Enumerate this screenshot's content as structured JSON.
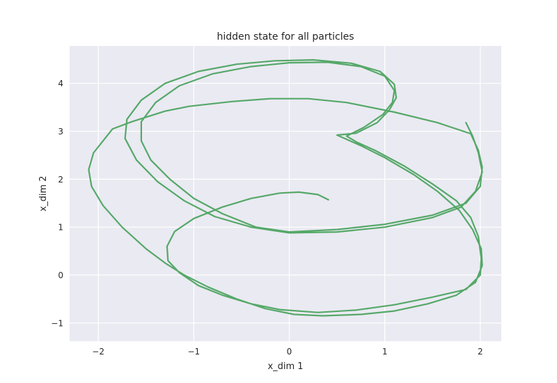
{
  "chart_data": {
    "type": "line",
    "title": "hidden state for all particles",
    "xlabel": "x_dim 1",
    "ylabel": "x_dim 2",
    "xlim": [
      -2.3,
      2.22
    ],
    "ylim": [
      -1.38,
      4.78
    ],
    "xticks": [
      {
        "value": -2,
        "label": "−2"
      },
      {
        "value": -1,
        "label": "−1"
      },
      {
        "value": 0,
        "label": "0"
      },
      {
        "value": 1,
        "label": "1"
      },
      {
        "value": 2,
        "label": "2"
      }
    ],
    "yticks": [
      {
        "value": -1,
        "label": "−1"
      },
      {
        "value": 0,
        "label": "0"
      },
      {
        "value": 1,
        "label": "1"
      },
      {
        "value": 2,
        "label": "2"
      },
      {
        "value": 3,
        "label": "3"
      },
      {
        "value": 4,
        "label": "4"
      }
    ],
    "grid": true,
    "background": "#eaeaf2",
    "grid_color": "#ffffff",
    "series": [
      {
        "color": "#55a868",
        "points": [
          [
            0.41,
            1.57
          ],
          [
            0.3,
            1.68
          ],
          [
            0.1,
            1.73
          ],
          [
            -0.1,
            1.71
          ],
          [
            -0.4,
            1.6
          ],
          [
            -0.7,
            1.42
          ],
          [
            -1.0,
            1.18
          ],
          [
            -1.2,
            0.91
          ],
          [
            -1.28,
            0.6
          ],
          [
            -1.27,
            0.3
          ],
          [
            -1.15,
            0.05
          ],
          [
            -0.95,
            -0.22
          ],
          [
            -0.7,
            -0.42
          ],
          [
            -0.4,
            -0.6
          ],
          [
            -0.1,
            -0.72
          ],
          [
            0.3,
            -0.78
          ],
          [
            0.7,
            -0.73
          ],
          [
            1.1,
            -0.62
          ],
          [
            1.5,
            -0.46
          ],
          [
            1.85,
            -0.3
          ],
          [
            2.0,
            0.0
          ],
          [
            2.01,
            0.35
          ],
          [
            1.98,
            0.8
          ],
          [
            1.9,
            1.2
          ],
          [
            1.75,
            1.55
          ],
          [
            1.5,
            1.9
          ],
          [
            1.2,
            2.28
          ],
          [
            0.9,
            2.6
          ],
          [
            0.7,
            2.78
          ],
          [
            0.6,
            2.9
          ],
          [
            0.78,
            3.08
          ],
          [
            0.98,
            3.35
          ],
          [
            1.08,
            3.6
          ],
          [
            1.1,
            3.85
          ],
          [
            1.0,
            4.15
          ],
          [
            0.75,
            4.35
          ],
          [
            0.4,
            4.44
          ],
          [
            0.0,
            4.43
          ],
          [
            -0.4,
            4.35
          ],
          [
            -0.8,
            4.2
          ],
          [
            -1.15,
            3.95
          ],
          [
            -1.4,
            3.6
          ],
          [
            -1.55,
            3.2
          ],
          [
            -1.55,
            2.8
          ],
          [
            -1.45,
            2.4
          ],
          [
            -1.25,
            2.0
          ],
          [
            -1.0,
            1.6
          ],
          [
            -0.7,
            1.28
          ],
          [
            -0.35,
            1.0
          ],
          [
            0.0,
            0.9
          ],
          [
            0.5,
            0.95
          ],
          [
            1.0,
            1.06
          ],
          [
            1.5,
            1.25
          ],
          [
            1.85,
            1.5
          ],
          [
            2.0,
            1.85
          ],
          [
            2.02,
            2.25
          ],
          [
            1.98,
            2.6
          ],
          [
            1.9,
            2.95
          ],
          [
            1.55,
            3.18
          ],
          [
            1.1,
            3.4
          ],
          [
            0.6,
            3.6
          ],
          [
            0.2,
            3.68
          ],
          [
            -0.2,
            3.68
          ],
          [
            -0.6,
            3.62
          ],
          [
            -1.05,
            3.52
          ],
          [
            -1.3,
            3.42
          ],
          [
            -1.65,
            3.2
          ],
          [
            -1.85,
            3.05
          ],
          [
            -1.95,
            2.8
          ],
          [
            -2.05,
            2.55
          ],
          [
            -2.1,
            2.2
          ],
          [
            -2.07,
            1.85
          ],
          [
            -1.95,
            1.45
          ],
          [
            -1.75,
            1.0
          ],
          [
            -1.5,
            0.55
          ],
          [
            -1.3,
            0.25
          ],
          [
            -1.1,
            0.0
          ],
          [
            -0.85,
            -0.25
          ],
          [
            -0.55,
            -0.5
          ],
          [
            -0.25,
            -0.7
          ],
          [
            0.05,
            -0.82
          ],
          [
            0.35,
            -0.85
          ],
          [
            0.75,
            -0.82
          ],
          [
            1.1,
            -0.75
          ],
          [
            1.45,
            -0.6
          ],
          [
            1.75,
            -0.42
          ],
          [
            1.95,
            -0.15
          ],
          [
            2.02,
            0.2
          ],
          [
            2.01,
            0.55
          ],
          [
            1.92,
            0.95
          ],
          [
            1.78,
            1.35
          ],
          [
            1.55,
            1.75
          ],
          [
            1.3,
            2.1
          ],
          [
            1.0,
            2.45
          ],
          [
            0.75,
            2.7
          ],
          [
            0.5,
            2.92
          ],
          [
            0.7,
            2.96
          ],
          [
            0.92,
            3.18
          ],
          [
            1.05,
            3.45
          ],
          [
            1.12,
            3.7
          ],
          [
            1.1,
            3.98
          ],
          [
            0.95,
            4.25
          ],
          [
            0.65,
            4.42
          ],
          [
            0.25,
            4.49
          ],
          [
            -0.15,
            4.47
          ],
          [
            -0.55,
            4.4
          ],
          [
            -0.95,
            4.25
          ],
          [
            -1.3,
            4.0
          ],
          [
            -1.55,
            3.65
          ],
          [
            -1.7,
            3.25
          ],
          [
            -1.72,
            2.85
          ],
          [
            -1.6,
            2.4
          ],
          [
            -1.38,
            1.95
          ],
          [
            -1.1,
            1.55
          ],
          [
            -0.78,
            1.22
          ],
          [
            -0.4,
            1.0
          ],
          [
            0.0,
            0.88
          ],
          [
            0.5,
            0.9
          ],
          [
            1.0,
            1.0
          ],
          [
            1.5,
            1.2
          ],
          [
            1.8,
            1.42
          ],
          [
            1.95,
            1.75
          ],
          [
            2.02,
            2.15
          ],
          [
            1.98,
            2.55
          ],
          [
            1.92,
            2.9
          ],
          [
            1.85,
            3.18
          ]
        ]
      }
    ]
  }
}
